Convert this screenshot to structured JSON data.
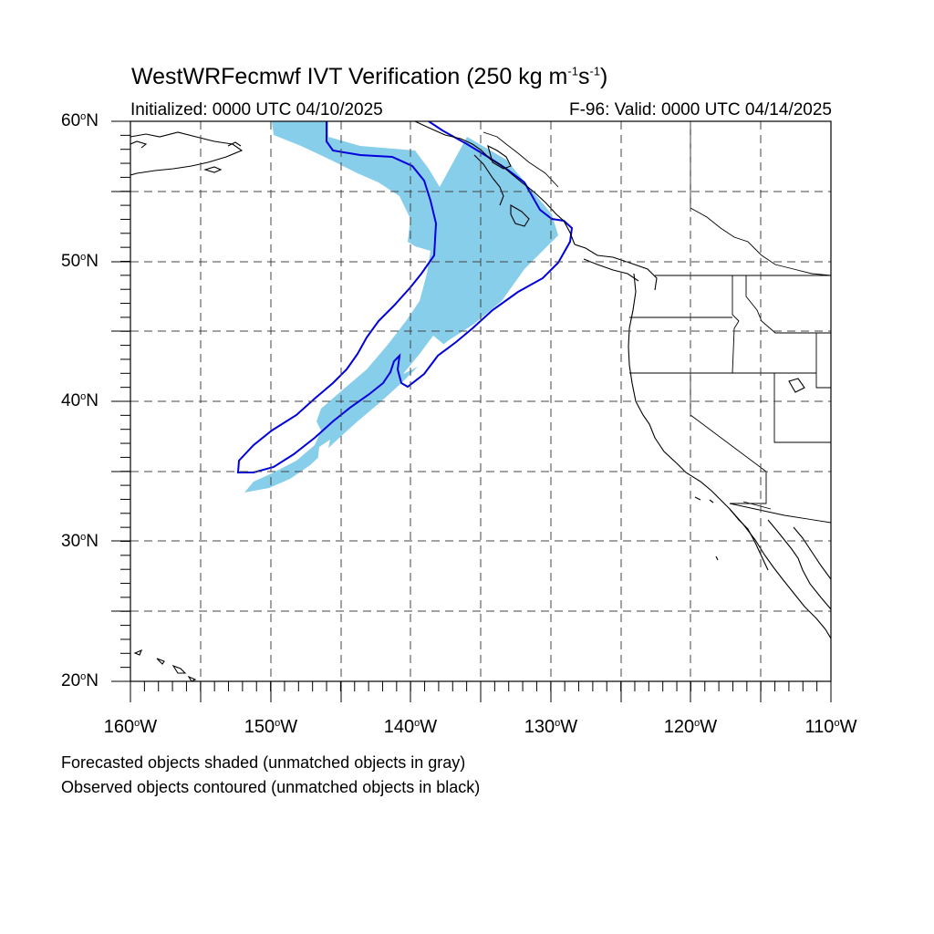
{
  "title": {
    "main": "WestWRFecmwf IVT Verification (250 kg m",
    "sup1": "-1",
    "mid": "s",
    "sup2": "-1",
    "end": ")"
  },
  "subtitle": {
    "initialized": "Initialized: 0000 UTC 04/10/2025",
    "valid": "F-96: Valid: 0000 UTC 04/14/2025"
  },
  "lat_labels": [
    {
      "num": "60",
      "hem": "N"
    },
    {
      "num": "50",
      "hem": "N"
    },
    {
      "num": "40",
      "hem": "N"
    },
    {
      "num": "30",
      "hem": "N"
    },
    {
      "num": "20",
      "hem": "N"
    }
  ],
  "lon_labels": [
    {
      "num": "160",
      "hem": "W"
    },
    {
      "num": "150",
      "hem": "W"
    },
    {
      "num": "140",
      "hem": "W"
    },
    {
      "num": "130",
      "hem": "W"
    },
    {
      "num": "120",
      "hem": "W"
    },
    {
      "num": "110",
      "hem": "W"
    }
  ],
  "notes": {
    "forecast": "Forecasted objects shaded (unmatched objects in gray)",
    "observed": "Observed objects contoured (unmatched objects in black)"
  },
  "colors": {
    "forecast_fill": "#87CEEB",
    "observed_contour": "#0000DD",
    "coastline": "#000000",
    "grid": "#444444"
  }
}
